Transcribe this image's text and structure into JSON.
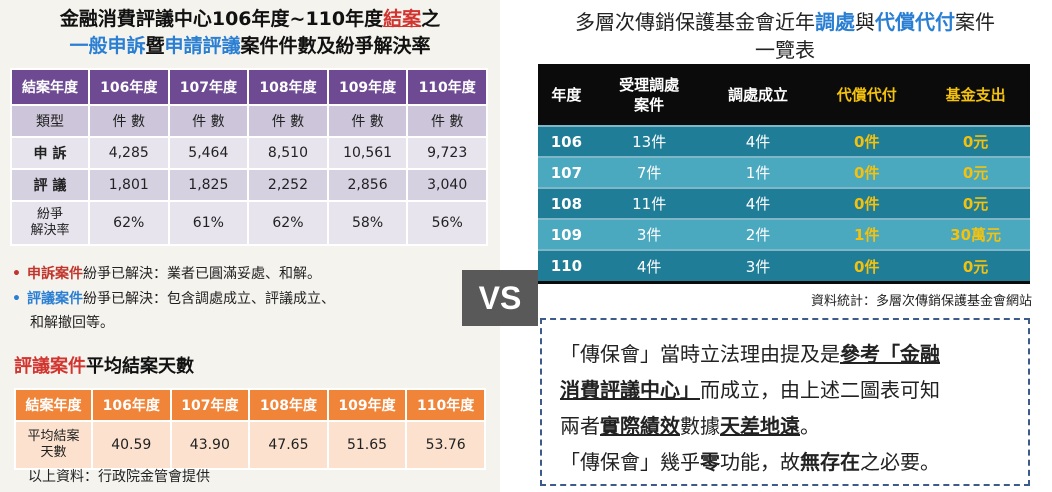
{
  "left": {
    "title_line1_prefix": "金融消費評議中心106年度~110年度",
    "title_line1_red": "結案",
    "title_line1_suffix": "之",
    "title_line2_blue1": "一般申訴",
    "title_line2_mid": "暨",
    "title_line2_blue2": "申請評議",
    "title_line2_suffix": "案件件數及紛爭解決率",
    "table": {
      "headers": [
        "結案年度",
        "106年度",
        "107年度",
        "108年度",
        "109年度",
        "110年度"
      ],
      "type_row": [
        "類型",
        "件 數",
        "件 數",
        "件 數",
        "件 數",
        "件 數"
      ],
      "complaint_row": [
        "申 訴",
        "4,285",
        "5,464",
        "8,510",
        "10,561",
        "9,723"
      ],
      "review_row": [
        "評 議",
        "1,801",
        "1,825",
        "2,252",
        "2,856",
        "3,040"
      ],
      "rate_row": [
        "紛爭\n解決率",
        "62%",
        "61%",
        "62%",
        "58%",
        "56%"
      ]
    },
    "note1": {
      "bullet": "•",
      "keyword": "申訴案件",
      "text": "紛爭已解決：業者已圓滿妥處、和解。"
    },
    "note2": {
      "bullet": "•",
      "keyword": "評議案件",
      "text": "紛爭已解決：包含調處成立、評議成立、",
      "text2": "和解撤回等。"
    },
    "avg_title_red": "評議案件",
    "avg_title_rest": "平均結案天數",
    "avg_table": {
      "headers": [
        "結案年度",
        "106年度",
        "107年度",
        "108年度",
        "109年度",
        "110年度"
      ],
      "row": [
        "平均結案\n天數",
        "40.59",
        "43.90",
        "47.65",
        "51.65",
        "53.76"
      ]
    },
    "source": "以上資料：行政院金管會提供"
  },
  "vs": "VS",
  "right": {
    "title_prefix": "多層次傳銷保護基金會近年",
    "title_blue1": "調處",
    "title_mid": "與",
    "title_blue2": "代償代付",
    "title_suffix": "案件",
    "title_line2": "一覽表",
    "table": {
      "headers": [
        "年度",
        "受理調處\n案件",
        "調處成立",
        "代償代付",
        "基金支出"
      ],
      "rows": [
        [
          "106",
          "13件",
          "4件",
          "0件",
          "0元"
        ],
        [
          "107",
          "7件",
          "1件",
          "0件",
          "0元"
        ],
        [
          "108",
          "11件",
          "4件",
          "0件",
          "0元"
        ],
        [
          "109",
          "3件",
          "2件",
          "1件",
          "30萬元"
        ],
        [
          "110",
          "4件",
          "3件",
          "0件",
          "0元"
        ]
      ]
    },
    "source": "資料統計：多層次傳銷保護基金會網站",
    "box": {
      "l1_a": "「傳保會」當時立法理由提及是",
      "l1_b": "參考「金融",
      "l2_a": "消費評議中心」",
      "l2_b": "而成立，由上述二圖表可知",
      "l3_a": "兩者",
      "l3_b": "實際績效",
      "l3_c": "數據",
      "l3_d": "天差地遠",
      "l3_e": "。",
      "l4_a": "「傳保會」幾乎",
      "l4_b": "零",
      "l4_c": "功能，故",
      "l4_d": "無存在",
      "l4_e": "之必要。"
    }
  }
}
